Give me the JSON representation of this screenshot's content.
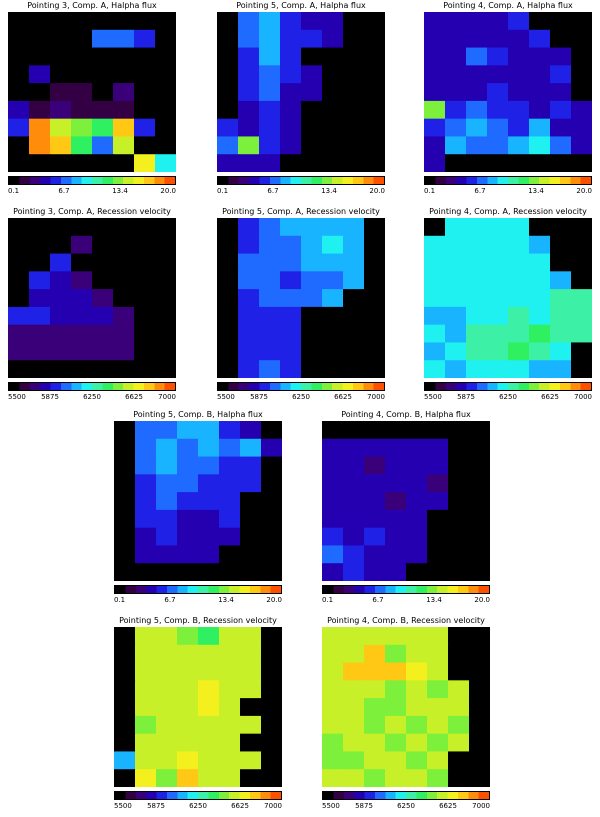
{
  "colorbar_stops": [
    "#000000",
    "#330044",
    "#3a007a",
    "#2400b0",
    "#1f22e6",
    "#1f6bff",
    "#19b4ff",
    "#1ff0f0",
    "#3cf0a5",
    "#2ef060",
    "#7cf03a",
    "#c8f028",
    "#f4f01e",
    "#ffc814",
    "#ff8c0a",
    "#ff5000"
  ],
  "panels": [
    {
      "title": "Pointing 3, Comp. A, Halpha flux",
      "ticks": [
        "0.1",
        "6.7",
        "13.4",
        "20.0"
      ],
      "grid": [
        [
          0,
          0,
          0,
          0,
          0,
          0,
          0,
          0
        ],
        [
          0,
          0,
          0,
          0,
          5,
          5,
          4,
          0
        ],
        [
          0,
          0,
          0,
          0,
          0,
          0,
          0,
          0
        ],
        [
          0,
          3,
          0,
          0,
          0,
          0,
          0,
          0
        ],
        [
          0,
          0,
          1,
          1,
          0,
          2,
          0,
          0
        ],
        [
          3,
          1,
          2,
          1,
          1,
          1,
          0,
          0
        ],
        [
          4,
          14,
          11,
          10,
          9,
          13,
          4,
          0
        ],
        [
          0,
          14,
          13,
          9,
          5,
          11,
          0,
          0
        ],
        [
          0,
          0,
          0,
          0,
          0,
          0,
          12,
          7
        ]
      ]
    },
    {
      "title": "Pointing 5, Comp. A, Halpha flux",
      "ticks": [
        "0.1",
        "6.7",
        "13.4",
        "20.0"
      ],
      "grid": [
        [
          0,
          5,
          6,
          4,
          3,
          3,
          0,
          0
        ],
        [
          0,
          5,
          6,
          4,
          4,
          3,
          0,
          0
        ],
        [
          0,
          4,
          6,
          4,
          0,
          0,
          0,
          0
        ],
        [
          0,
          4,
          5,
          4,
          3,
          0,
          0,
          0
        ],
        [
          0,
          4,
          5,
          3,
          3,
          0,
          0,
          0
        ],
        [
          0,
          3,
          4,
          3,
          0,
          0,
          0,
          0
        ],
        [
          4,
          3,
          4,
          3,
          0,
          0,
          0,
          0
        ],
        [
          5,
          10,
          4,
          3,
          0,
          0,
          0,
          0
        ],
        [
          3,
          3,
          3,
          0,
          0,
          0,
          0,
          0
        ]
      ]
    },
    {
      "title": "Pointing 4, Comp. A, Halpha flux",
      "ticks": [
        "0.1",
        "6.7",
        "13.4",
        "20.0"
      ],
      "grid": [
        [
          3,
          3,
          3,
          3,
          4,
          0,
          0,
          0
        ],
        [
          3,
          3,
          3,
          3,
          3,
          4,
          0,
          0
        ],
        [
          3,
          3,
          5,
          4,
          3,
          3,
          3,
          0
        ],
        [
          3,
          3,
          3,
          3,
          3,
          3,
          4,
          0
        ],
        [
          3,
          3,
          3,
          4,
          3,
          3,
          3,
          0
        ],
        [
          10,
          4,
          5,
          4,
          4,
          3,
          4,
          3
        ],
        [
          4,
          5,
          6,
          5,
          4,
          6,
          3,
          3
        ],
        [
          3,
          6,
          5,
          5,
          6,
          7,
          5,
          3
        ],
        [
          3,
          0,
          0,
          0,
          0,
          0,
          0,
          0
        ]
      ]
    },
    {
      "title": "Pointing 3, Comp. A, Recession velocity",
      "ticks": [
        "5500",
        "5875",
        "6250",
        "6625",
        "7000"
      ],
      "grid": [
        [
          0,
          0,
          0,
          0,
          0,
          0,
          0,
          0
        ],
        [
          0,
          0,
          0,
          2,
          0,
          0,
          0,
          0
        ],
        [
          0,
          0,
          4,
          0,
          0,
          0,
          0,
          0
        ],
        [
          0,
          4,
          3,
          2,
          0,
          0,
          0,
          0
        ],
        [
          0,
          3,
          3,
          3,
          2,
          0,
          0,
          0
        ],
        [
          4,
          4,
          3,
          3,
          3,
          2,
          0,
          0
        ],
        [
          2,
          2,
          2,
          2,
          2,
          2,
          0,
          0
        ],
        [
          2,
          2,
          2,
          2,
          2,
          2,
          0,
          0
        ],
        [
          0,
          0,
          0,
          0,
          0,
          0,
          0,
          0
        ]
      ]
    },
    {
      "title": "Pointing 5, Comp. A, Recession velocity",
      "ticks": [
        "5500",
        "5875",
        "6250",
        "6625",
        "7000"
      ],
      "grid": [
        [
          0,
          4,
          5,
          6,
          6,
          6,
          6,
          0
        ],
        [
          0,
          4,
          5,
          5,
          6,
          7,
          6,
          0
        ],
        [
          0,
          5,
          5,
          5,
          6,
          6,
          6,
          0
        ],
        [
          0,
          5,
          5,
          4,
          5,
          5,
          6,
          0
        ],
        [
          0,
          4,
          5,
          5,
          5,
          6,
          0,
          0
        ],
        [
          0,
          4,
          4,
          4,
          0,
          0,
          0,
          0
        ],
        [
          0,
          4,
          4,
          4,
          0,
          0,
          0,
          0
        ],
        [
          0,
          4,
          4,
          4,
          0,
          0,
          0,
          0
        ],
        [
          0,
          4,
          5,
          4,
          0,
          0,
          0,
          0
        ]
      ]
    },
    {
      "title": "Pointing 4, Comp. A, Recession velocity",
      "ticks": [
        "5500",
        "5875",
        "6250",
        "6625",
        "7000"
      ],
      "grid": [
        [
          0,
          7,
          7,
          7,
          7,
          0,
          0,
          0
        ],
        [
          7,
          7,
          7,
          7,
          7,
          6,
          0,
          0
        ],
        [
          7,
          7,
          7,
          7,
          7,
          7,
          0,
          0
        ],
        [
          7,
          7,
          7,
          7,
          7,
          7,
          6,
          0
        ],
        [
          7,
          7,
          7,
          7,
          7,
          7,
          8,
          8
        ],
        [
          6,
          6,
          7,
          7,
          8,
          7,
          8,
          8
        ],
        [
          7,
          6,
          8,
          8,
          8,
          9,
          8,
          8
        ],
        [
          6,
          7,
          8,
          8,
          9,
          8,
          7,
          0
        ],
        [
          7,
          6,
          7,
          7,
          7,
          6,
          6,
          0
        ]
      ]
    },
    {
      "title": "Pointing 5, Comp. B, Halpha flux",
      "ticks": [
        "0.1",
        "6.7",
        "13.4",
        "20.0"
      ],
      "grid": [
        [
          0,
          5,
          5,
          6,
          6,
          4,
          3,
          0
        ],
        [
          0,
          5,
          6,
          5,
          6,
          5,
          6,
          3
        ],
        [
          0,
          5,
          6,
          5,
          5,
          4,
          4,
          0
        ],
        [
          0,
          4,
          5,
          5,
          4,
          4,
          4,
          0
        ],
        [
          0,
          4,
          5,
          4,
          4,
          4,
          0,
          0
        ],
        [
          0,
          4,
          4,
          3,
          3,
          4,
          0,
          0
        ],
        [
          0,
          3,
          4,
          3,
          3,
          3,
          0,
          0
        ],
        [
          0,
          3,
          3,
          3,
          3,
          0,
          0,
          0
        ],
        [
          0,
          0,
          0,
          0,
          0,
          0,
          0,
          0
        ]
      ]
    },
    {
      "title": "Pointing 4, Comp. B, Halpha flux",
      "ticks": [
        "0.1",
        "6.7",
        "13.4",
        "20.0"
      ],
      "grid": [
        [
          0,
          0,
          0,
          0,
          0,
          0,
          0,
          0
        ],
        [
          3,
          3,
          3,
          3,
          3,
          3,
          0,
          0
        ],
        [
          3,
          3,
          2,
          3,
          3,
          3,
          0,
          0
        ],
        [
          3,
          3,
          3,
          3,
          3,
          2,
          0,
          0
        ],
        [
          3,
          3,
          3,
          2,
          3,
          3,
          0,
          0
        ],
        [
          3,
          3,
          3,
          3,
          3,
          0,
          0,
          0
        ],
        [
          4,
          3,
          4,
          3,
          3,
          0,
          0,
          0
        ],
        [
          5,
          4,
          3,
          3,
          3,
          0,
          0,
          0
        ],
        [
          3,
          4,
          3,
          3,
          0,
          0,
          0,
          0
        ]
      ]
    },
    {
      "title": "Pointing 5, Comp. B, Recession velocity",
      "ticks": [
        "5500",
        "5875",
        "6250",
        "6625",
        "7000"
      ],
      "grid": [
        [
          0,
          11,
          11,
          10,
          9,
          11,
          11,
          0
        ],
        [
          0,
          11,
          11,
          11,
          11,
          11,
          11,
          0
        ],
        [
          0,
          11,
          11,
          11,
          11,
          11,
          11,
          0
        ],
        [
          0,
          11,
          11,
          11,
          12,
          11,
          11,
          0
        ],
        [
          0,
          11,
          11,
          11,
          12,
          11,
          0,
          0
        ],
        [
          0,
          10,
          11,
          11,
          11,
          11,
          11,
          0
        ],
        [
          0,
          11,
          11,
          11,
          11,
          11,
          0,
          0
        ],
        [
          6,
          11,
          11,
          12,
          11,
          11,
          11,
          0
        ],
        [
          0,
          12,
          10,
          13,
          11,
          11,
          0,
          0
        ]
      ]
    },
    {
      "title": "Pointing 4, Comp. B, Recession velocity",
      "ticks": [
        "5500",
        "5875",
        "6250",
        "6625",
        "7000"
      ],
      "grid": [
        [
          11,
          11,
          11,
          11,
          11,
          11,
          0,
          0
        ],
        [
          11,
          11,
          13,
          10,
          11,
          11,
          0,
          0
        ],
        [
          11,
          13,
          13,
          13,
          12,
          11,
          0,
          0
        ],
        [
          11,
          11,
          11,
          10,
          11,
          10,
          11,
          0
        ],
        [
          11,
          11,
          10,
          10,
          11,
          11,
          11,
          0
        ],
        [
          11,
          11,
          10,
          11,
          10,
          11,
          10,
          0
        ],
        [
          10,
          11,
          11,
          10,
          11,
          10,
          11,
          0
        ],
        [
          10,
          10,
          11,
          11,
          10,
          11,
          0,
          0
        ],
        [
          11,
          11,
          10,
          11,
          11,
          10,
          0,
          0
        ]
      ]
    }
  ]
}
